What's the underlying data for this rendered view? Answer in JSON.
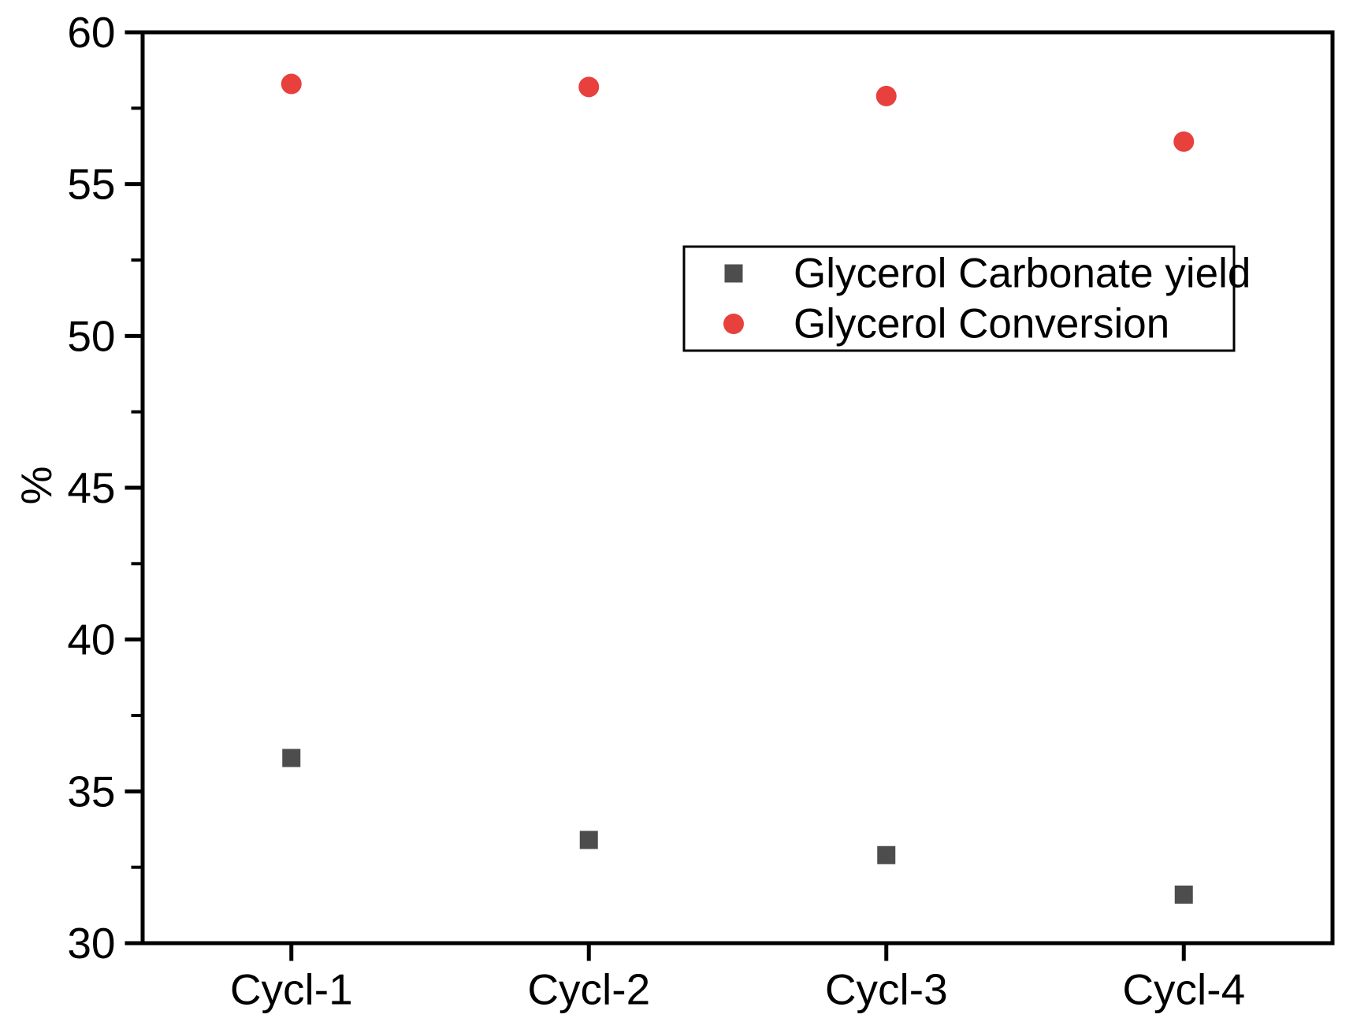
{
  "chart_data": {
    "type": "scatter",
    "title": "",
    "xlabel": "",
    "ylabel": "%",
    "categories": [
      "Cycl-1",
      "Cycl-2",
      "Cycl-3",
      "Cycl-4"
    ],
    "series": [
      {
        "name": "Glycerol Carbonate yield",
        "marker": "square",
        "color": "#4d4d4d",
        "values": [
          36.1,
          33.4,
          32.9,
          31.6
        ]
      },
      {
        "name": "Glycerol Conversion",
        "marker": "circle",
        "color": "#e8403d",
        "values": [
          58.3,
          58.2,
          57.9,
          56.4
        ]
      }
    ],
    "ylim": [
      30,
      60
    ],
    "yticks": [
      30,
      35,
      40,
      45,
      50,
      55,
      60
    ],
    "y_minor_ticks": [
      32.5,
      37.5,
      42.5,
      47.5,
      52.5,
      57.5
    ],
    "x_range_units": [
      0.5,
      4.5
    ],
    "grid": false,
    "legend_position": "upper-right-inside",
    "axis_color": "#000000",
    "background_color": "#ffffff"
  }
}
